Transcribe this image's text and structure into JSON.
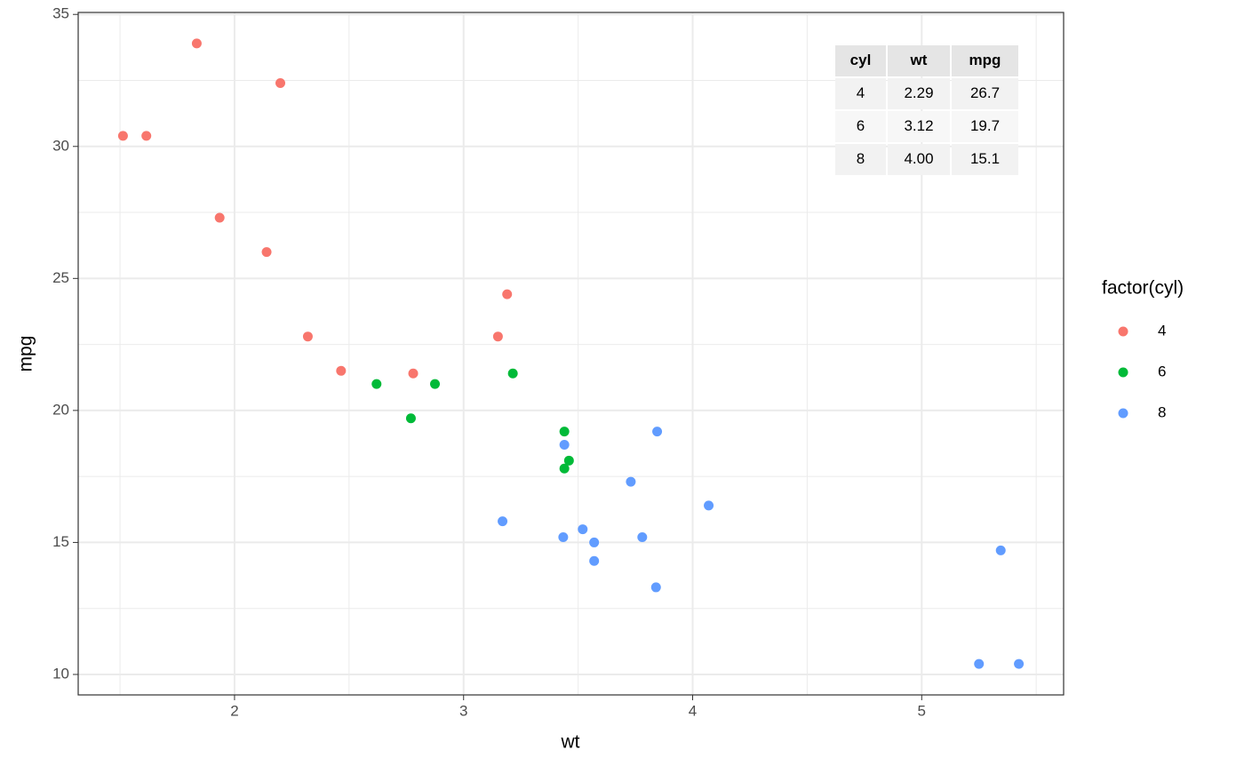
{
  "chart_data": {
    "type": "scatter",
    "x_label": "wt",
    "y_label": "mpg",
    "xlim": [
      1.31745,
      5.61955
    ],
    "ylim": [
      9.225,
      35.075
    ],
    "xticks": [
      2,
      3,
      4,
      5
    ],
    "yticks": [
      10,
      15,
      20,
      25,
      30,
      35
    ],
    "x_minor_breaks": [
      1.5,
      2.5,
      3.5,
      4.5,
      5.5
    ],
    "y_minor_breaks": [
      12.5,
      17.5,
      22.5,
      27.5,
      32.5
    ],
    "grid": true,
    "legend_position": "right",
    "legend_title": "factor(cyl)",
    "series": [
      {
        "name": "4",
        "color": "#F8766D",
        "x": [
          2.32,
          3.19,
          3.15,
          2.2,
          1.615,
          1.835,
          2.465,
          1.935,
          2.14,
          1.513,
          2.78
        ],
        "values": [
          22.8,
          24.4,
          22.8,
          32.4,
          30.4,
          33.9,
          21.5,
          27.3,
          26.0,
          30.4,
          21.4
        ]
      },
      {
        "name": "6",
        "color": "#00BA38",
        "x": [
          2.62,
          2.875,
          3.215,
          3.46,
          3.44,
          3.44,
          2.77
        ],
        "values": [
          21.0,
          21.0,
          21.4,
          18.1,
          19.2,
          17.8,
          19.7
        ]
      },
      {
        "name": "8",
        "color": "#619CFF",
        "x": [
          3.44,
          3.57,
          4.07,
          3.73,
          3.78,
          5.25,
          5.424,
          5.345,
          3.52,
          3.435,
          3.84,
          3.845,
          3.17,
          3.57
        ],
        "values": [
          18.7,
          14.3,
          16.4,
          17.3,
          15.2,
          10.4,
          10.4,
          14.7,
          15.5,
          15.2,
          13.3,
          19.2,
          15.8,
          15.0
        ]
      }
    ],
    "table": {
      "columns": [
        "cyl",
        "wt",
        "mpg"
      ],
      "rows": [
        [
          "4",
          "2.29",
          "26.7"
        ],
        [
          "6",
          "3.12",
          "19.7"
        ],
        [
          "8",
          "4.00",
          "15.1"
        ]
      ]
    }
  }
}
